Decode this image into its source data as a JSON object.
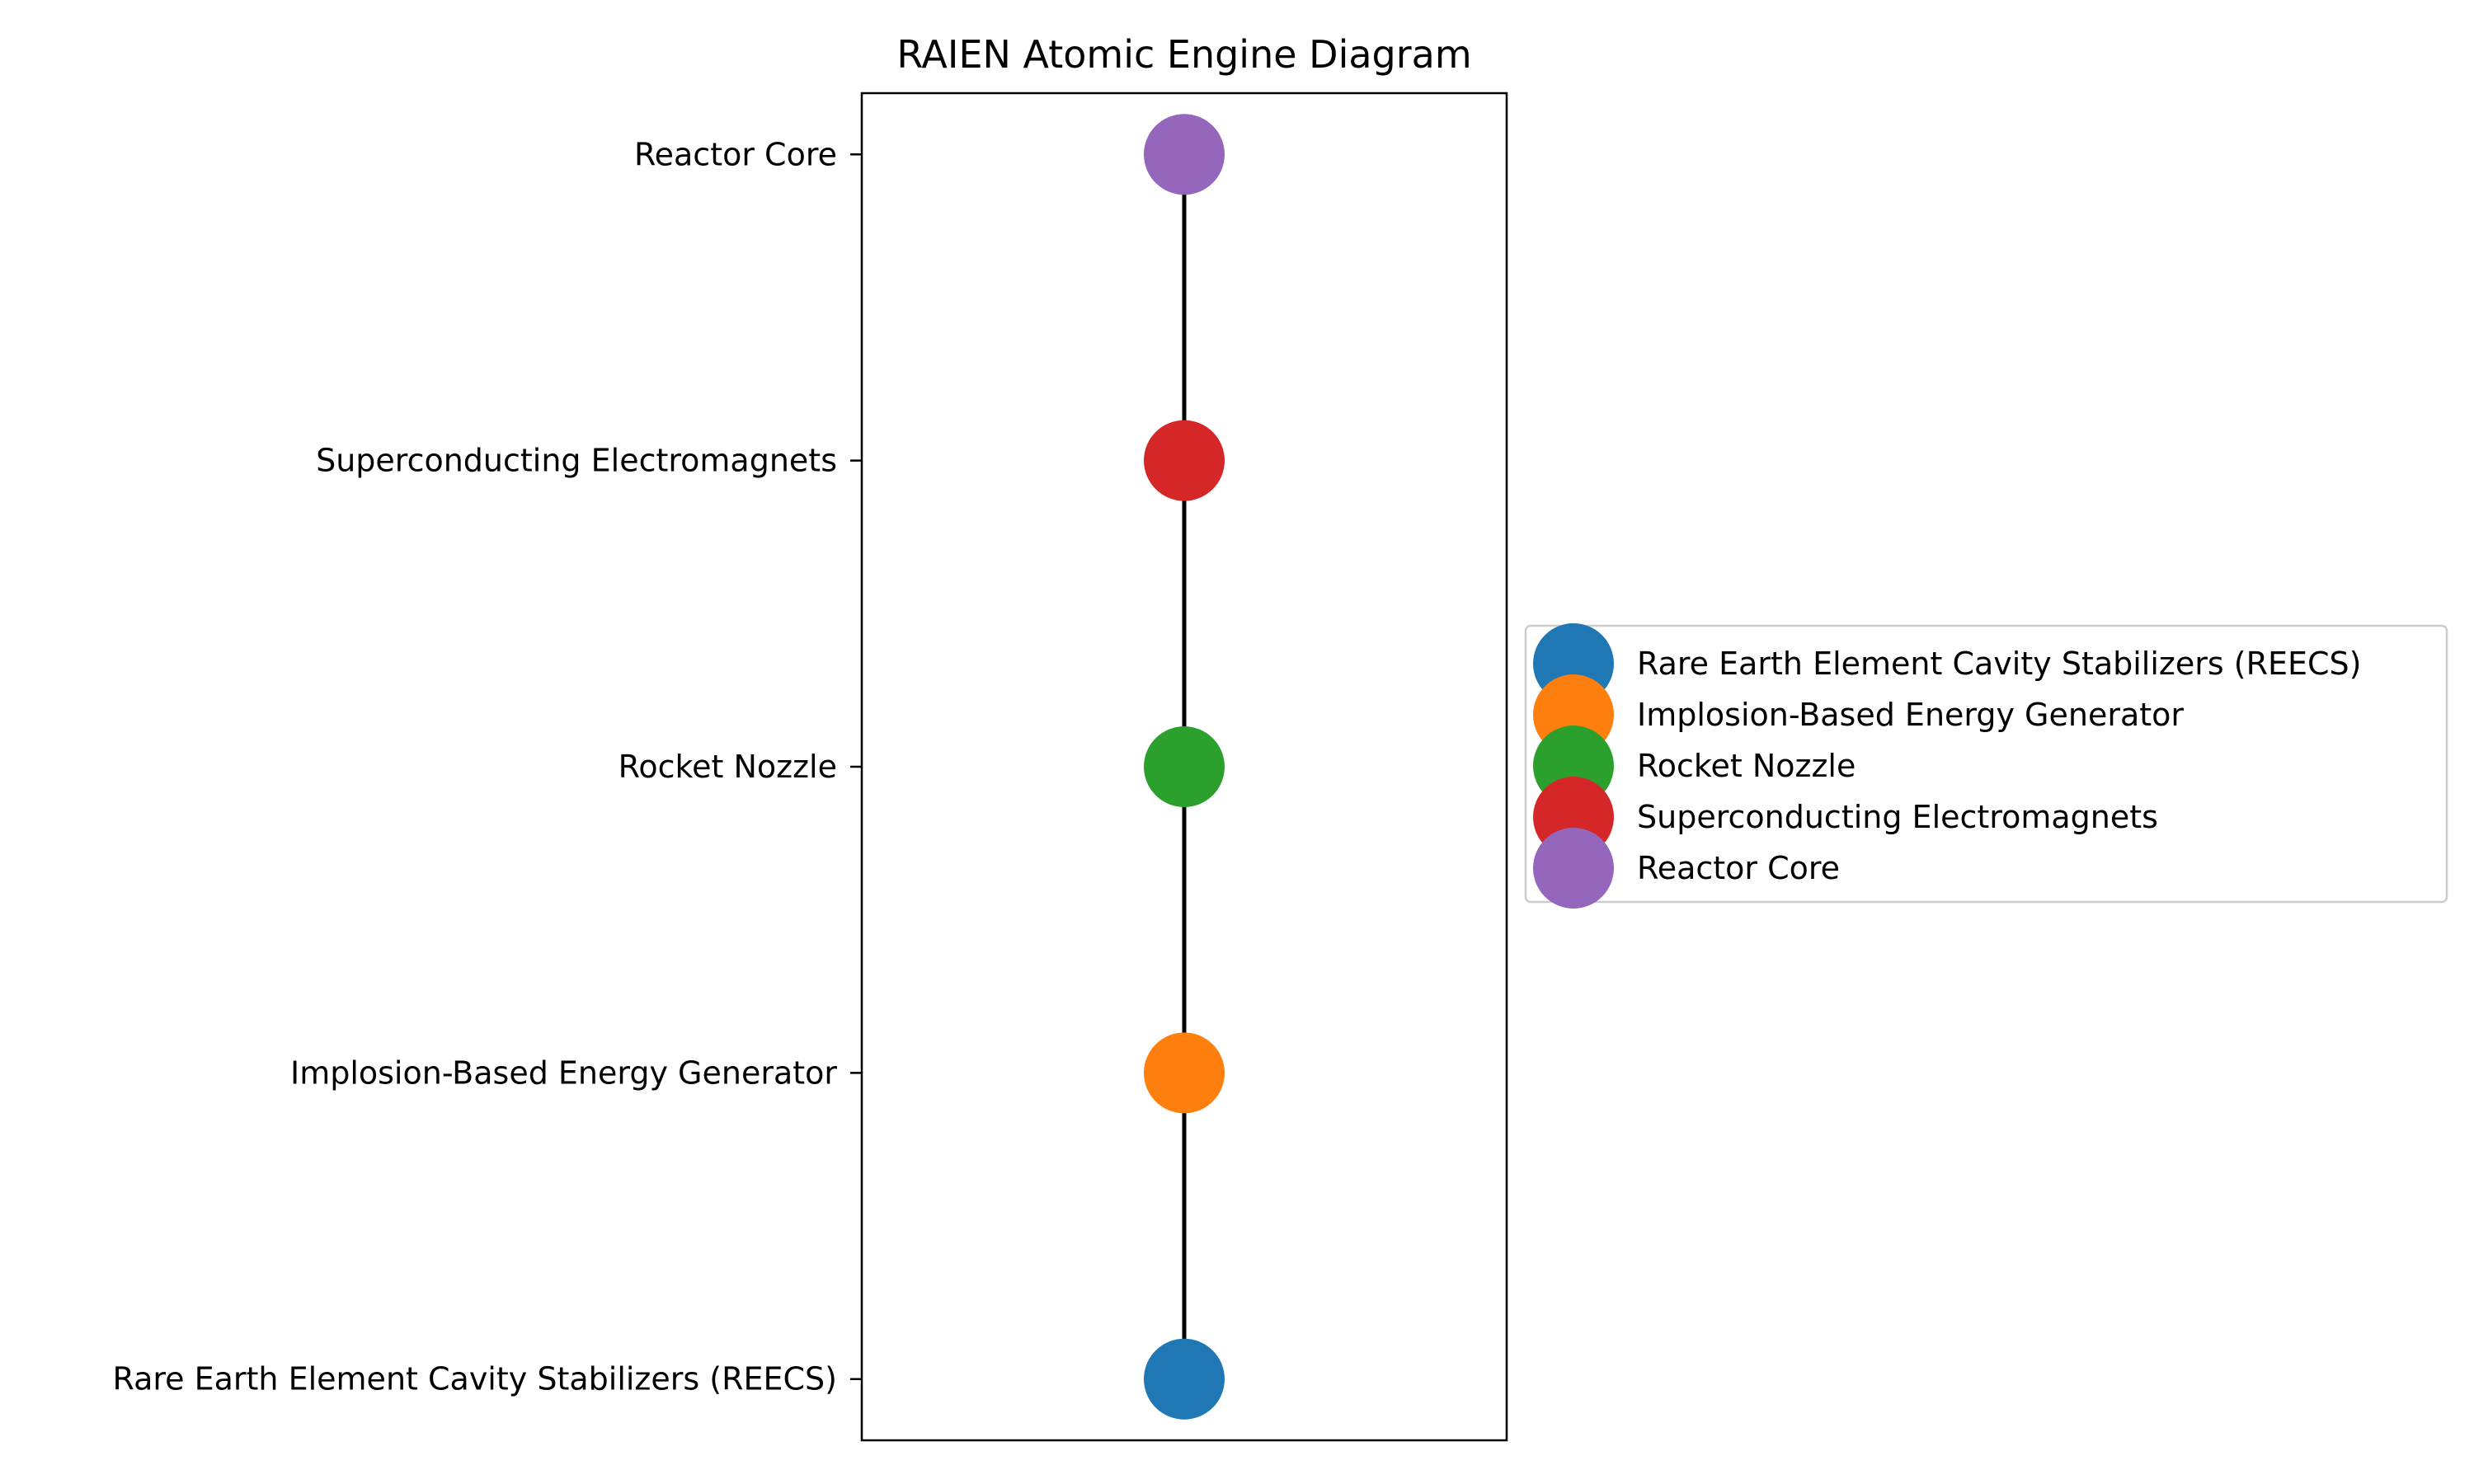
{
  "chart_data": {
    "type": "scatter",
    "title": "RAIEN Atomic Engine Diagram",
    "xlabel": "",
    "ylabel": "",
    "categories": [
      "Rare Earth Element Cavity Stabilizers (REECS)",
      "Implosion-Based Energy Generator",
      "Rocket Nozzle",
      "Superconducting Electromagnets",
      "Reactor Core"
    ],
    "series": [
      {
        "name": "Rare Earth Element Cavity Stabilizers (REECS)",
        "x": 0,
        "y": 0,
        "color": "#1f77b4"
      },
      {
        "name": "Implosion-Based Energy Generator",
        "x": 0,
        "y": 1,
        "color": "#ff7f0e"
      },
      {
        "name": "Rocket Nozzle",
        "x": 0,
        "y": 2,
        "color": "#2ca02c"
      },
      {
        "name": "Superconducting Electromagnets",
        "x": 0,
        "y": 3,
        "color": "#d62728"
      },
      {
        "name": "Reactor Core",
        "x": 0,
        "y": 4,
        "color": "#9467bd"
      }
    ],
    "connector": {
      "from_y": 0,
      "to_y": 4,
      "color": "#000000"
    },
    "ylim": [
      -0.2,
      4.2
    ],
    "xlim": [
      -0.5,
      0.5
    ],
    "grid": false,
    "legend_position": "center-right outside"
  }
}
